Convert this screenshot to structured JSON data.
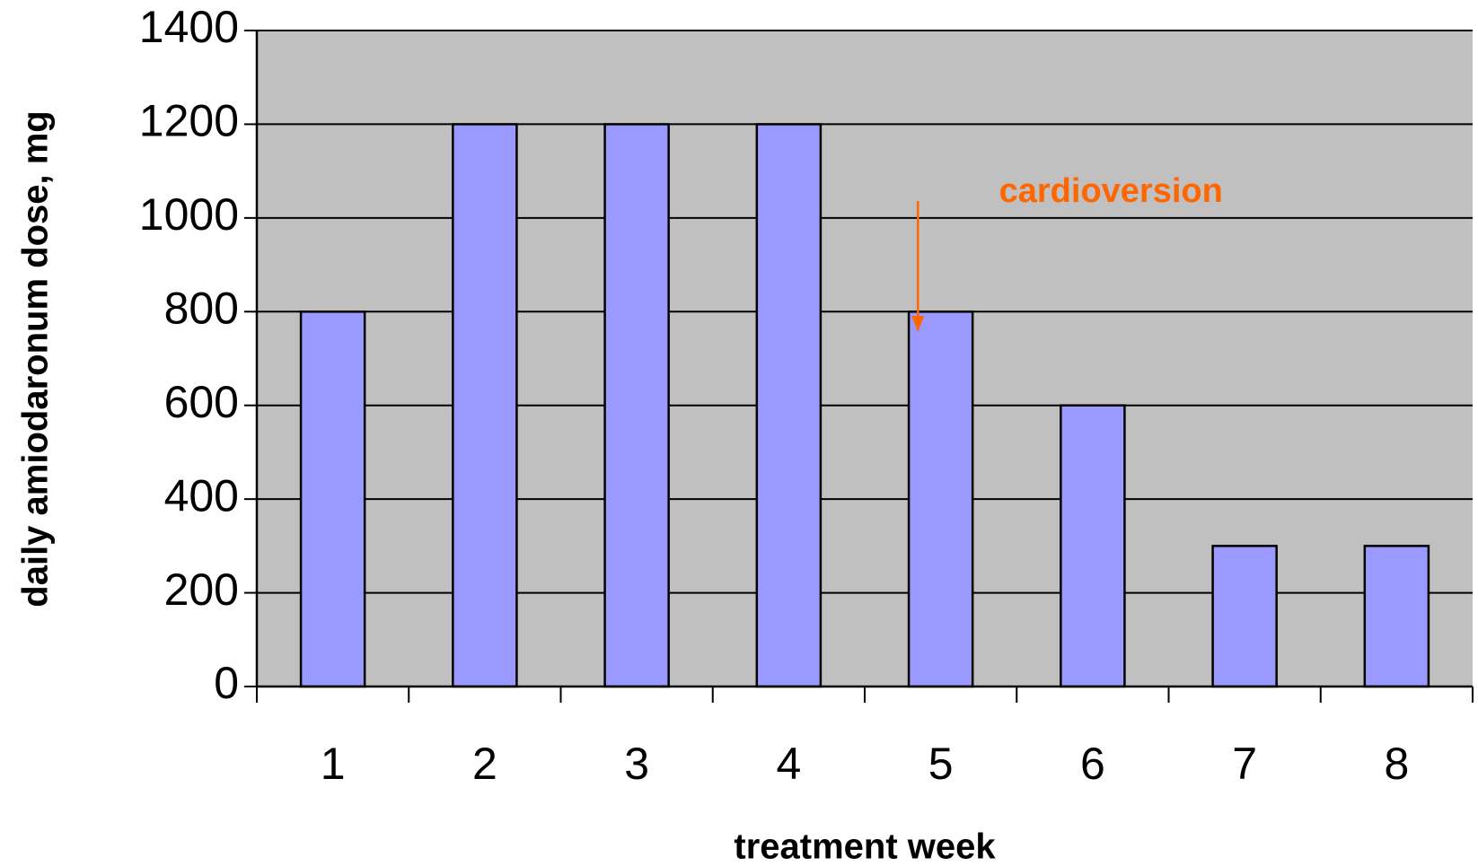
{
  "chart_data": {
    "type": "bar",
    "x_label": "treatment week",
    "y_label": "daily amiodaronum dose, mg",
    "annotation": "cardioversion",
    "categories": [
      "1",
      "2",
      "3",
      "4",
      "5",
      "6",
      "7",
      "8"
    ],
    "values": [
      800,
      1200,
      1200,
      1200,
      800,
      600,
      300,
      300
    ],
    "color": "#9999ff",
    "ylim": [
      0,
      1400
    ],
    "yticks": [
      0,
      200,
      400,
      600,
      800,
      1000,
      1200,
      1400
    ],
    "grid": true
  }
}
